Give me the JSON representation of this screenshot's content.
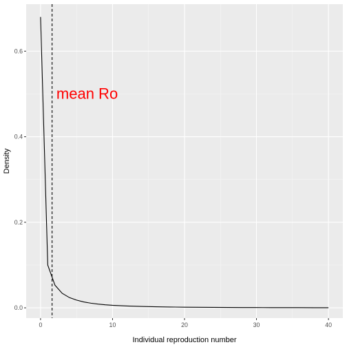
{
  "chart_data": {
    "type": "line",
    "title": "",
    "xlabel": "Individual reproduction number",
    "ylabel": "Density",
    "xlim": [
      -2,
      42
    ],
    "ylim": [
      -0.024,
      0.71
    ],
    "x_ticks": [
      0,
      10,
      20,
      30,
      40
    ],
    "x_tick_labels": [
      "0",
      "10",
      "20",
      "30",
      "40"
    ],
    "y_ticks": [
      0.0,
      0.2,
      0.4,
      0.6
    ],
    "y_tick_labels": [
      "0.0",
      "0.2",
      "0.4",
      "0.6"
    ],
    "grid": true,
    "legend": "none",
    "series": [
      {
        "color": "#000000",
        "x": [
          0,
          1,
          2,
          3,
          4,
          5,
          6,
          7,
          8,
          9,
          10,
          12,
          14,
          16,
          18,
          20,
          22,
          24,
          26,
          28,
          30,
          32,
          34,
          36,
          38,
          40
        ],
        "y": [
          0.68,
          0.1,
          0.053,
          0.034,
          0.024,
          0.018,
          0.0137,
          0.0108,
          0.0087,
          0.0071,
          0.0059,
          0.0043,
          0.0032,
          0.0024,
          0.0019,
          0.0015,
          0.0012,
          0.001,
          0.0008,
          0.0007,
          0.0006,
          0.0005,
          0.0004,
          0.0004,
          0.0003,
          0.0003
        ]
      }
    ],
    "vline": {
      "x": 1.6,
      "style": "dashed",
      "color": "#000000"
    },
    "annotation": {
      "text": "mean Ro",
      "x": 2.2,
      "y": 0.5,
      "color": "#ff0000"
    }
  }
}
